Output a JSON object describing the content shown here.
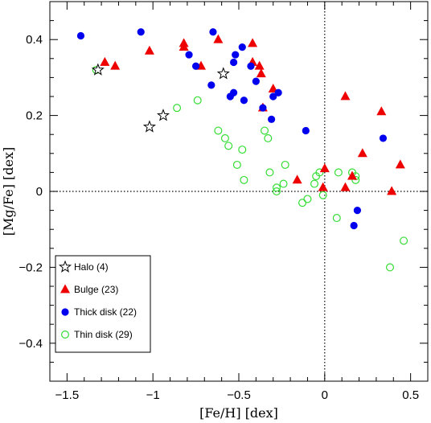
{
  "chart_data": {
    "type": "scatter",
    "xlabel": "[Fe/H] [dex]",
    "ylabel": "[Mg/Fe] [dex]",
    "xlim": [
      -1.6,
      0.6
    ],
    "ylim": [
      -0.5,
      0.5
    ],
    "x_ticks": [
      -1.5,
      -1.0,
      -0.5,
      0,
      0.5
    ],
    "x_tick_labels": [
      "−1.5",
      "−1",
      "−0.5",
      "0",
      "0.5"
    ],
    "y_ticks": [
      -0.4,
      -0.2,
      0,
      0.2,
      0.4
    ],
    "y_tick_labels": [
      "−0.4",
      "−0.2",
      "0",
      "0.2",
      "0.4"
    ],
    "reference_lines": {
      "x": 0,
      "y": 0,
      "style": "dotted"
    },
    "grid": false,
    "legend_position": "bottom-left",
    "series": [
      {
        "name": "Halo (4)",
        "marker": "star",
        "color": "#000000",
        "points": [
          [
            -1.32,
            0.32
          ],
          [
            -0.59,
            0.31
          ],
          [
            -0.94,
            0.2
          ],
          [
            -1.02,
            0.17
          ]
        ]
      },
      {
        "name": "Bulge (23)",
        "marker": "triangle",
        "color": "#ee0000",
        "points": [
          [
            -1.28,
            0.34
          ],
          [
            -1.22,
            0.33
          ],
          [
            -1.02,
            0.37
          ],
          [
            -0.82,
            0.39
          ],
          [
            -0.82,
            0.38
          ],
          [
            -0.72,
            0.33
          ],
          [
            -0.62,
            0.4
          ],
          [
            -0.42,
            0.39
          ],
          [
            -0.42,
            0.34
          ],
          [
            -0.38,
            0.33
          ],
          [
            -0.37,
            0.31
          ],
          [
            -0.36,
            0.22
          ],
          [
            -0.3,
            0.27
          ],
          [
            -0.16,
            0.03
          ],
          [
            -0.01,
            0.01
          ],
          [
            0.0,
            0.06
          ],
          [
            0.12,
            0.25
          ],
          [
            0.12,
            0.01
          ],
          [
            0.22,
            0.1
          ],
          [
            0.33,
            0.21
          ],
          [
            0.39,
            0.0
          ],
          [
            0.44,
            0.07
          ],
          [
            0.16,
            0.04
          ]
        ]
      },
      {
        "name": "Thick disk (22)",
        "marker": "filled-circle",
        "color": "#0000ee",
        "points": [
          [
            -1.42,
            0.41
          ],
          [
            -1.07,
            0.42
          ],
          [
            -0.79,
            0.36
          ],
          [
            -0.75,
            0.33
          ],
          [
            -0.65,
            0.42
          ],
          [
            -0.66,
            0.28
          ],
          [
            -0.53,
            0.34
          ],
          [
            -0.52,
            0.36
          ],
          [
            -0.48,
            0.38
          ],
          [
            -0.47,
            0.24
          ],
          [
            -0.43,
            0.33
          ],
          [
            -0.4,
            0.29
          ],
          [
            -0.36,
            0.22
          ],
          [
            -0.3,
            0.25
          ],
          [
            -0.27,
            0.26
          ],
          [
            -0.55,
            0.25
          ],
          [
            -0.31,
            0.19
          ],
          [
            -0.11,
            0.16
          ],
          [
            0.34,
            0.14
          ],
          [
            0.19,
            -0.05
          ],
          [
            0.17,
            -0.09
          ],
          [
            -0.53,
            0.26
          ]
        ]
      },
      {
        "name": "Thin disk (29)",
        "marker": "open-circle",
        "color": "#33dd33",
        "points": [
          [
            -1.33,
            0.32
          ],
          [
            -0.86,
            0.22
          ],
          [
            -0.74,
            0.24
          ],
          [
            -0.62,
            0.16
          ],
          [
            -0.58,
            0.14
          ],
          [
            -0.56,
            0.12
          ],
          [
            -0.51,
            0.07
          ],
          [
            -0.48,
            0.11
          ],
          [
            -0.47,
            0.03
          ],
          [
            -0.35,
            0.16
          ],
          [
            -0.33,
            0.14
          ],
          [
            -0.32,
            0.05
          ],
          [
            -0.28,
            0.01
          ],
          [
            -0.28,
            0.0
          ],
          [
            -0.23,
            0.07
          ],
          [
            -0.24,
            0.02
          ],
          [
            -0.13,
            -0.03
          ],
          [
            -0.1,
            -0.02
          ],
          [
            -0.06,
            0.02
          ],
          [
            -0.05,
            0.04
          ],
          [
            -0.03,
            0.05
          ],
          [
            -0.01,
            -0.01
          ],
          [
            0.07,
            -0.07
          ],
          [
            0.08,
            0.05
          ],
          [
            0.16,
            0.05
          ],
          [
            0.18,
            0.04
          ],
          [
            0.18,
            0.03
          ],
          [
            0.38,
            -0.2
          ],
          [
            0.46,
            -0.13
          ]
        ]
      }
    ]
  }
}
